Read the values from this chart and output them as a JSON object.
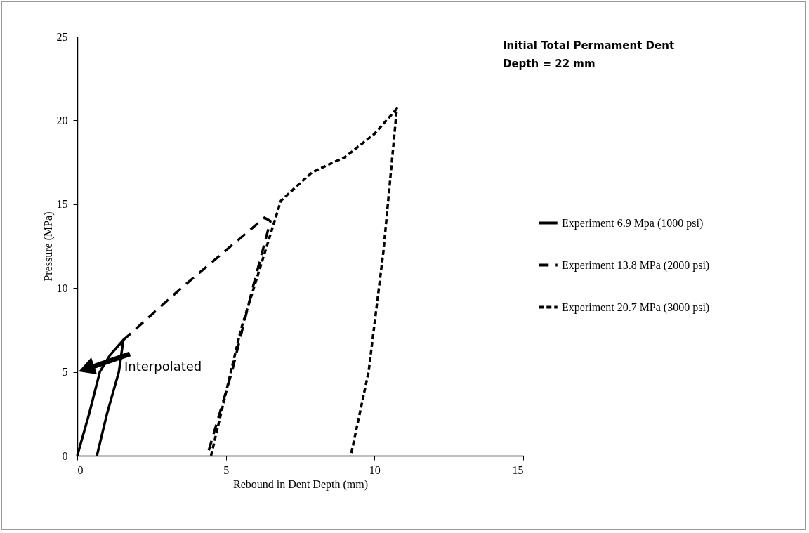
{
  "chart_data": {
    "type": "line",
    "xlabel": "Rebound in Dent Depth (mm)",
    "ylabel": "Pressure (MPa)",
    "xlim": [
      0,
      15
    ],
    "xticks": [
      0,
      5,
      10,
      15
    ],
    "ylim": [
      0,
      25
    ],
    "yticks": [
      0,
      5,
      10,
      15,
      20,
      25
    ],
    "grid": false,
    "legend": "right",
    "annotations": [
      "Initial Total Permament Dent\nDepth = 22 mm",
      "Interpolated"
    ],
    "series": [
      {
        "name": "Experiment 6.9 Mpa (1000 psi)",
        "color": "#000000",
        "line_style": "solid",
        "x": [
          0,
          0.4,
          0.76,
          1.1,
          1.55,
          1.4,
          1.0,
          0.66
        ],
        "values": [
          0,
          2.5,
          5.0,
          6.0,
          6.9,
          5.0,
          2.5,
          0
        ]
      },
      {
        "name": "Experiment 13.8 MPa (2000 psi)",
        "color": "#000000",
        "line_style": "dashed",
        "x": [
          1.55,
          3.5,
          6.3,
          6.5,
          5.9,
          5.2,
          4.37
        ],
        "values": [
          6.9,
          10,
          14.2,
          14.0,
          10,
          5,
          0
        ]
      },
      {
        "name": "Experiment 20.7 MPa (3000 psi)",
        "color": "#000000",
        "line_style": "dotted",
        "x": [
          4.5,
          5.5,
          6.85,
          7.4,
          7.9,
          8.5,
          9.0,
          10.0,
          10.75,
          10.3,
          9.8,
          9.2
        ],
        "values": [
          0,
          7.5,
          15.2,
          16.1,
          16.9,
          17.4,
          17.8,
          19.2,
          20.7,
          12.2,
          5,
          0
        ]
      }
    ]
  }
}
